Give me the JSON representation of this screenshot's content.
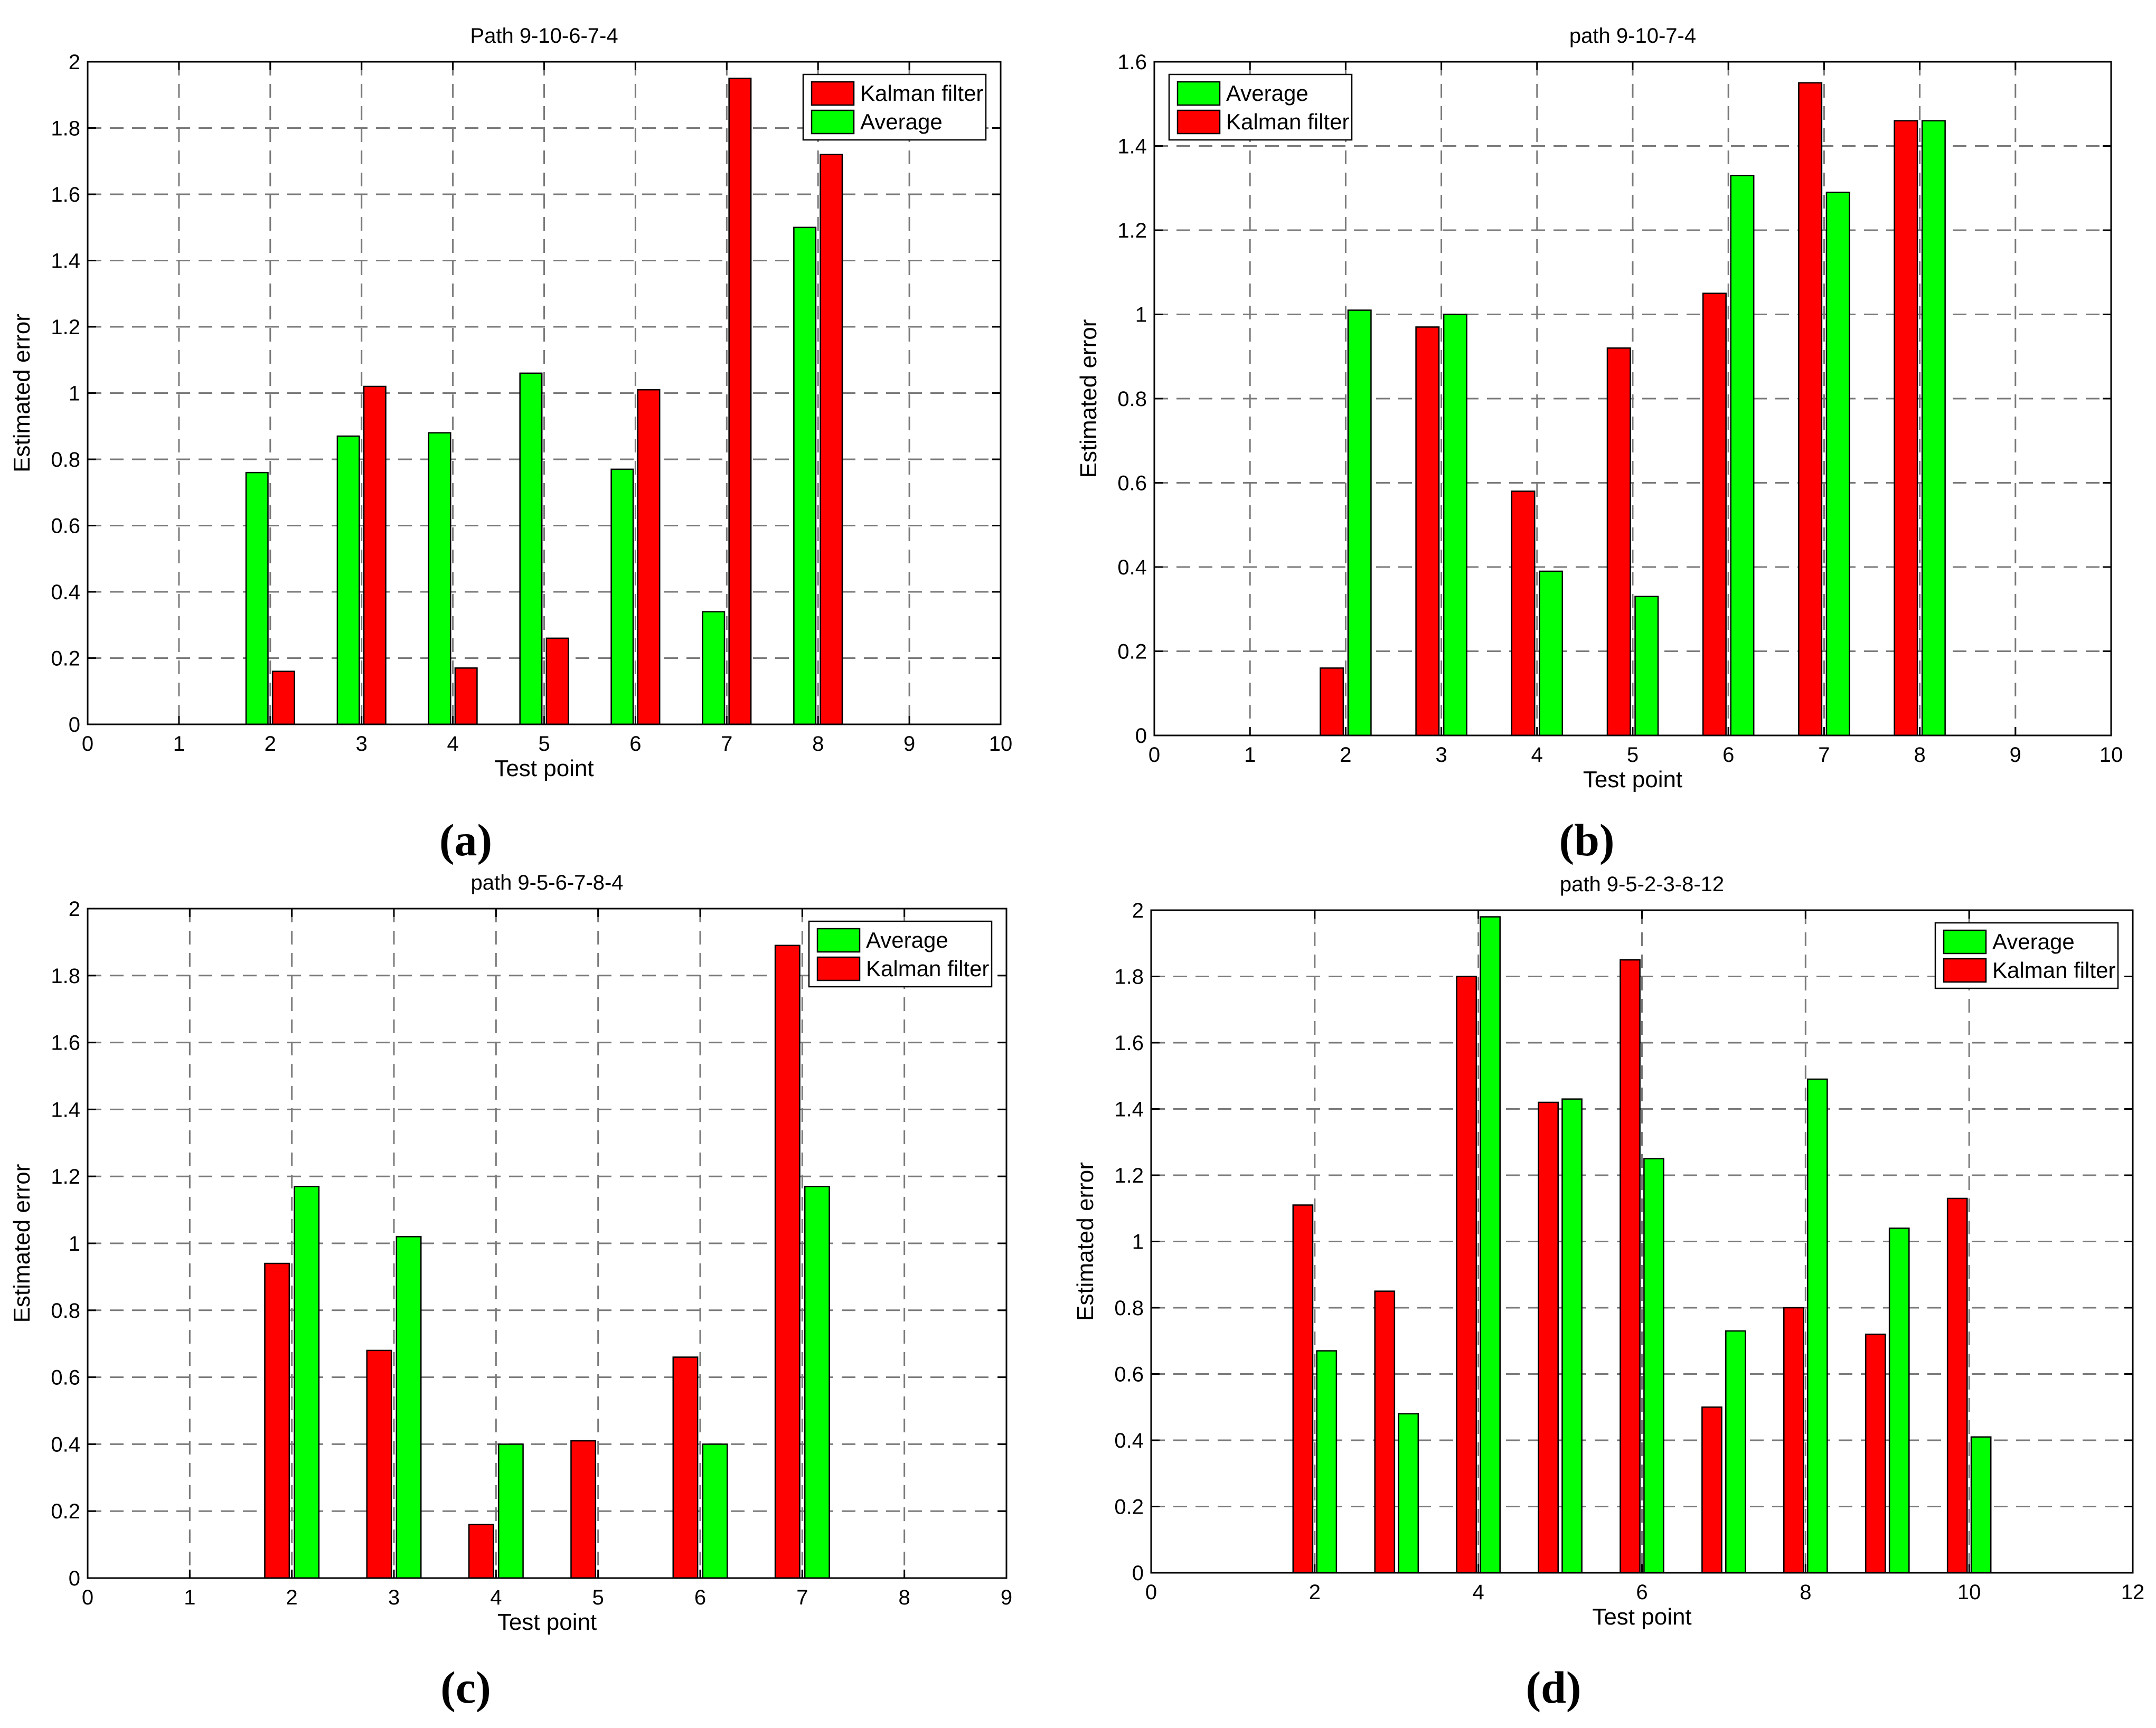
{
  "figure": {
    "colors": {
      "kalman": "#ff0000",
      "average": "#00ff00"
    }
  },
  "chart_data": [
    {
      "panel_label": "a",
      "type": "bar",
      "title": "Path 9-10-6-7-4",
      "xlabel": "Test point",
      "ylabel": "Estimated error",
      "xlim": [
        0,
        10
      ],
      "ylim": [
        0,
        2
      ],
      "xticks": [
        "0",
        "1",
        "2",
        "3",
        "4",
        "5",
        "6",
        "7",
        "8",
        "9",
        "10"
      ],
      "yticks": [
        "0",
        "0.2",
        "0.4",
        "0.6",
        "0.8",
        "1",
        "1.2",
        "1.4",
        "1.6",
        "1.8",
        "2"
      ],
      "categories": [
        2,
        3,
        4,
        5,
        6,
        7,
        8
      ],
      "legend": [
        "Kalman filter",
        "Average"
      ],
      "legend_position": "top-right",
      "series": [
        {
          "name": "Average",
          "color": "#00ff00",
          "values": [
            0.76,
            0.87,
            0.88,
            1.06,
            0.77,
            0.34,
            1.5
          ]
        },
        {
          "name": "Kalman filter",
          "color": "#ff0000",
          "values": [
            0.16,
            1.02,
            0.17,
            0.26,
            1.01,
            1.95,
            1.72
          ]
        }
      ]
    },
    {
      "panel_label": "b",
      "type": "bar",
      "title": "path 9-10-7-4",
      "xlabel": "Test point",
      "ylabel": "Estimated error",
      "xlim": [
        0,
        10
      ],
      "ylim": [
        0,
        1.6
      ],
      "xticks": [
        "0",
        "1",
        "2",
        "3",
        "4",
        "5",
        "6",
        "7",
        "8",
        "9",
        "10"
      ],
      "yticks": [
        "0",
        "0.2",
        "0.4",
        "0.6",
        "0.8",
        "1",
        "1.2",
        "1.4",
        "1.6"
      ],
      "categories": [
        2,
        3,
        4,
        5,
        6,
        7,
        8
      ],
      "legend": [
        "Average",
        "Kalman filter"
      ],
      "legend_position": "top-left",
      "series": [
        {
          "name": "Kalman filter",
          "color": "#ff0000",
          "values": [
            0.16,
            0.97,
            0.58,
            0.92,
            1.05,
            1.55,
            1.46
          ]
        },
        {
          "name": "Average",
          "color": "#00ff00",
          "values": [
            1.01,
            1.0,
            0.39,
            0.33,
            1.33,
            1.29,
            1.46
          ]
        }
      ]
    },
    {
      "panel_label": "c",
      "type": "bar",
      "title": "path 9-5-6-7-8-4",
      "xlabel": "Test point",
      "ylabel": "Estimated error",
      "xlim": [
        0,
        9
      ],
      "ylim": [
        0,
        2
      ],
      "xticks": [
        "0",
        "1",
        "2",
        "3",
        "4",
        "5",
        "6",
        "7",
        "8",
        "9"
      ],
      "yticks": [
        "0",
        "0.2",
        "0.4",
        "0.6",
        "0.8",
        "1",
        "1.2",
        "1.4",
        "1.6",
        "1.8",
        "2"
      ],
      "categories": [
        2,
        3,
        4,
        5,
        6,
        7
      ],
      "legend": [
        "Average",
        "Kalman filter"
      ],
      "legend_position": "top-right",
      "series": [
        {
          "name": "Kalman filter",
          "color": "#ff0000",
          "values": [
            0.94,
            0.68,
            0.16,
            0.41,
            0.66,
            1.89
          ]
        },
        {
          "name": "Average",
          "color": "#00ff00",
          "values": [
            1.17,
            1.02,
            0.4,
            0,
            0.4,
            1.17
          ]
        }
      ]
    },
    {
      "panel_label": "d",
      "type": "bar",
      "title": "path 9-5-2-3-8-12",
      "xlabel": "Test point",
      "ylabel": "Estimated error",
      "xlim": [
        0,
        12
      ],
      "ylim": [
        0,
        2
      ],
      "xticks": [
        "0",
        "2",
        "4",
        "6",
        "8",
        "10",
        "12"
      ],
      "yticks": [
        "0",
        "0.2",
        "0.4",
        "0.6",
        "0.8",
        "1",
        "1.2",
        "1.4",
        "1.6",
        "1.8",
        "2"
      ],
      "categories": [
        2,
        3,
        4,
        5,
        6,
        7,
        8,
        9,
        10
      ],
      "legend": [
        "Average",
        "Kalman filter"
      ],
      "legend_position": "top-right",
      "series": [
        {
          "name": "Kalman filter",
          "color": "#ff0000",
          "values": [
            1.11,
            0.85,
            1.8,
            1.42,
            1.85,
            0.5,
            0.8,
            0.72,
            1.13
          ]
        },
        {
          "name": "Average",
          "color": "#00ff00",
          "values": [
            0.67,
            0.48,
            1.98,
            1.43,
            1.25,
            0.73,
            1.49,
            1.04,
            0.41
          ]
        }
      ]
    }
  ]
}
